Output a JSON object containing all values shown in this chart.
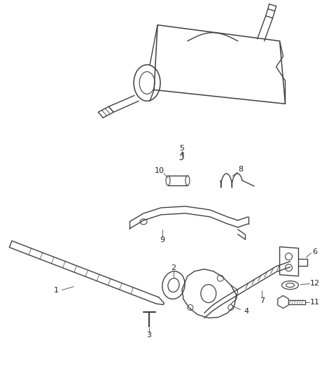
{
  "bg_color": "#ffffff",
  "line_color": "#404040",
  "line_width": 1.0,
  "fig_width": 4.8,
  "fig_height": 5.46,
  "dpi": 100,
  "label_fontsize": 8,
  "label_color": "#222222"
}
